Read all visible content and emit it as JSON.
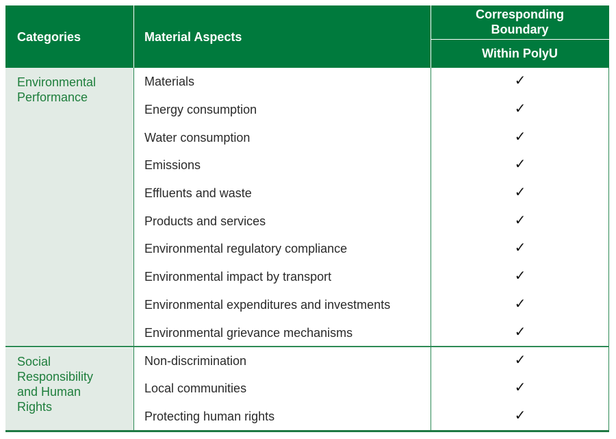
{
  "header": {
    "categories": "Categories",
    "material_aspects": "Material Aspects",
    "boundary_line1": "Corresponding",
    "boundary_line2": "Boundary",
    "within": "Within PolyU"
  },
  "groups": [
    {
      "category_lines": [
        "Environmental",
        "Performance"
      ],
      "rows": [
        {
          "aspect": "Materials",
          "within": "✓"
        },
        {
          "aspect": "Energy consumption",
          "within": "✓"
        },
        {
          "aspect": "Water consumption",
          "within": "✓"
        },
        {
          "aspect": "Emissions",
          "within": "✓"
        },
        {
          "aspect": "Effluents and waste",
          "within": "✓"
        },
        {
          "aspect": "Products and services",
          "within": "✓"
        },
        {
          "aspect": "Environmental regulatory compliance",
          "within": "✓"
        },
        {
          "aspect": "Environmental impact by transport",
          "within": "✓"
        },
        {
          "aspect": "Environmental expenditures and investments",
          "within": "✓"
        },
        {
          "aspect": "Environmental grievance mechanisms",
          "within": "✓"
        }
      ]
    },
    {
      "category_lines": [
        "Social",
        "Responsibility",
        "and Human",
        "Rights"
      ],
      "rows": [
        {
          "aspect": "Non-discrimination",
          "within": "✓"
        },
        {
          "aspect": "Local communities",
          "within": "✓"
        },
        {
          "aspect": "Protecting human rights",
          "within": "✓"
        }
      ]
    }
  ],
  "colors": {
    "header_bg": "#007a3d",
    "category_bg": "#e2ebe5",
    "category_text": "#1e7e3c",
    "rule": "#2d8a55"
  }
}
